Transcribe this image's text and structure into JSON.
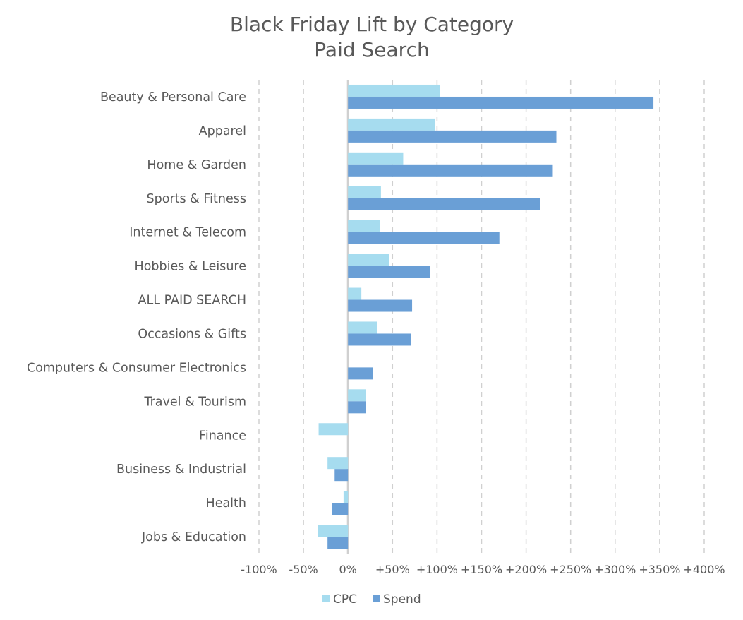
{
  "chart_data": {
    "type": "bar",
    "orientation": "horizontal",
    "title": "Black Friday Lift by Category",
    "subtitle": "Paid Search",
    "categories": [
      "Beauty & Personal Care",
      "Apparel",
      "Home & Garden",
      "Sports & Fitness",
      "Internet & Telecom",
      "Hobbies & Leisure",
      "ALL PAID SEARCH",
      "Occasions & Gifts",
      "Computers & Consumer Electronics",
      "Travel & Tourism",
      "Finance",
      "Business & Industrial",
      "Health",
      "Jobs & Education"
    ],
    "series": [
      {
        "name": "CPC",
        "color": "#a6dcef",
        "values": [
          103,
          98,
          62,
          37,
          36,
          46,
          15,
          33,
          0,
          20,
          -33,
          -23,
          -5,
          -34
        ]
      },
      {
        "name": "Spend",
        "color": "#6a9fd6",
        "values": [
          343,
          234,
          230,
          216,
          170,
          92,
          72,
          71,
          28,
          20,
          0,
          -15,
          -18,
          -23
        ]
      }
    ],
    "xlim": [
      -100,
      400
    ],
    "xticks": [
      -100,
      -50,
      0,
      50,
      100,
      150,
      200,
      250,
      300,
      350,
      400
    ],
    "xtick_labels": [
      "-100%",
      "-50%",
      "0%",
      "+50%",
      "+100%",
      "+150%",
      "+200%",
      "+250%",
      "+300%",
      "+350%",
      "+400%"
    ],
    "grid": true,
    "legend": "bottom"
  }
}
